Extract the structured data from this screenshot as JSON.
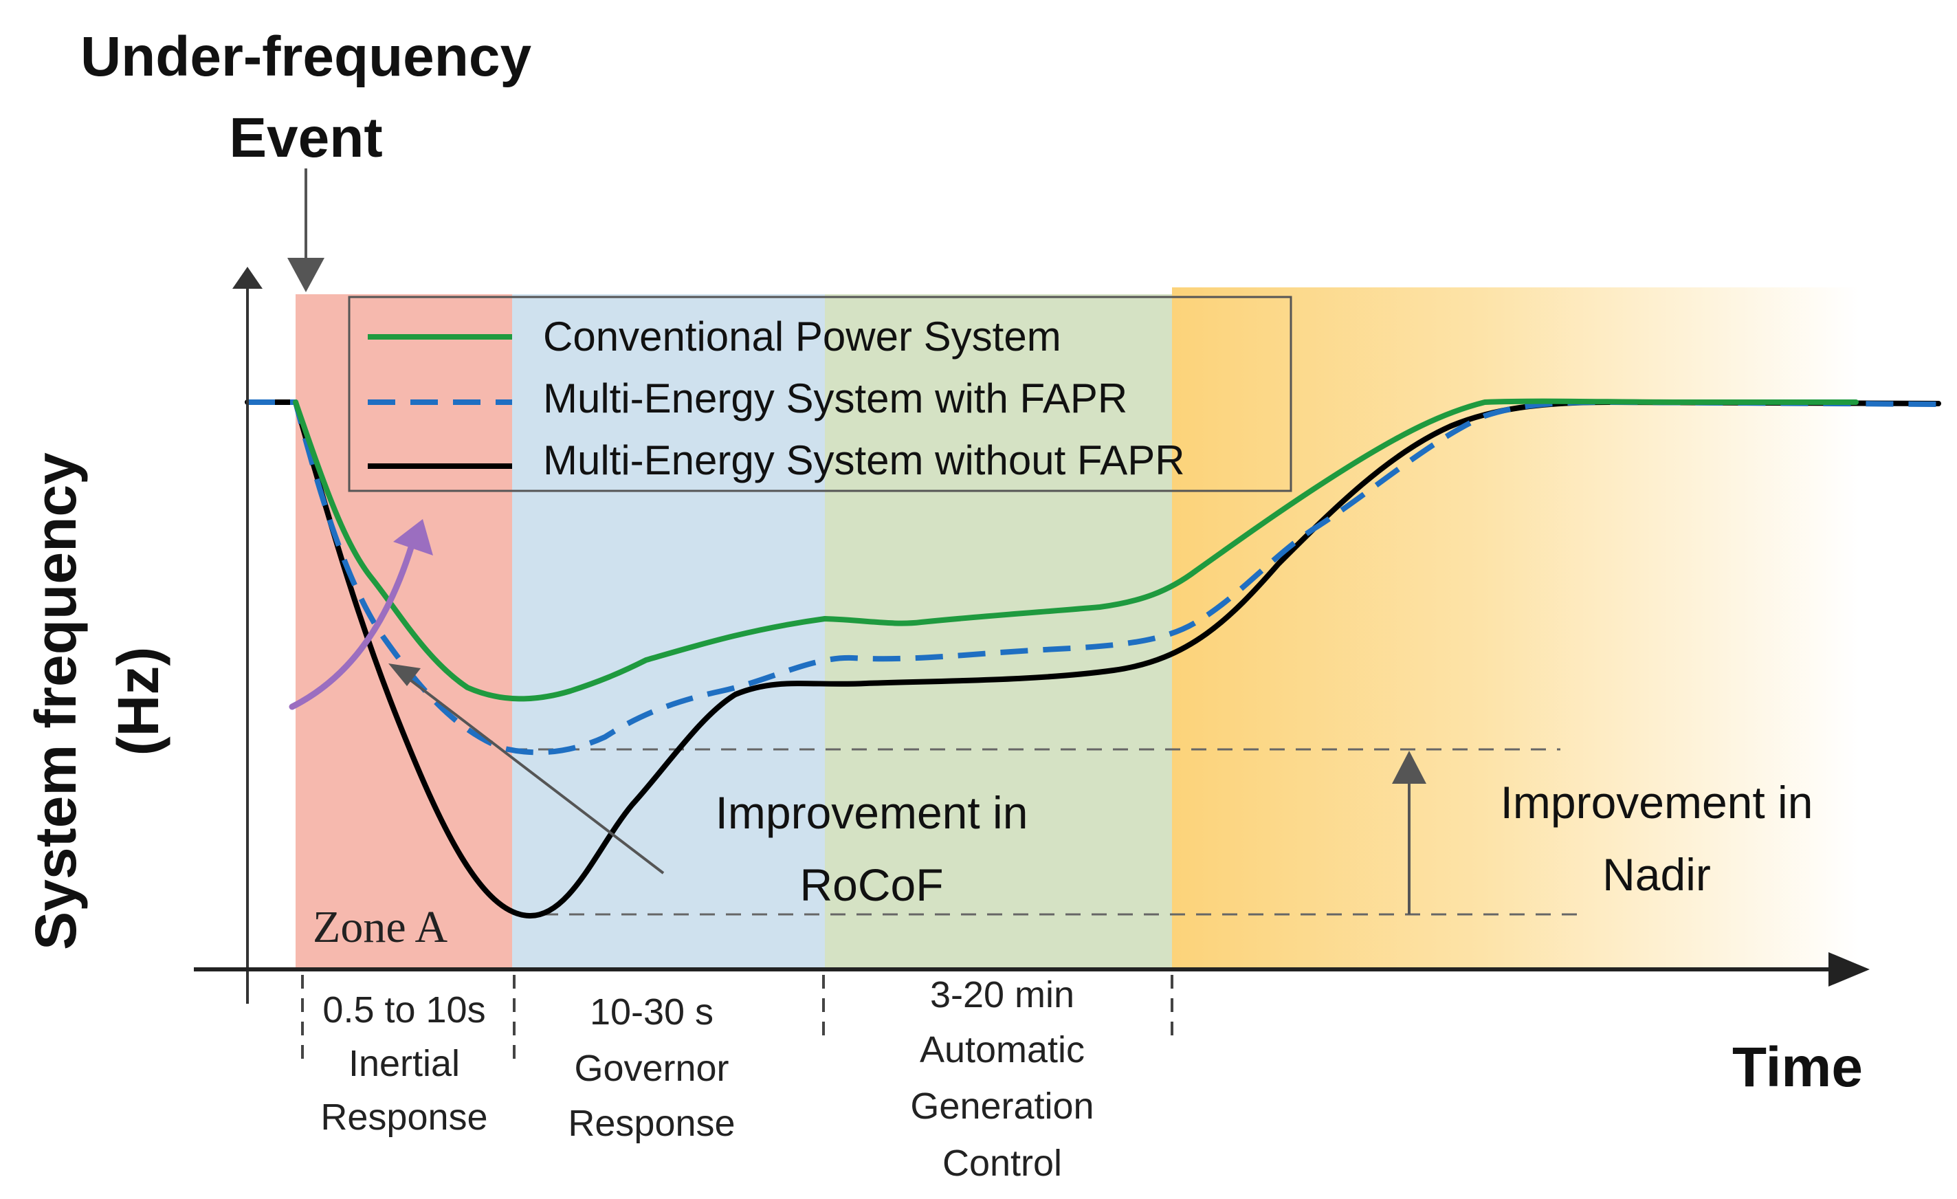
{
  "event": {
    "line1": "Under-frequency",
    "line2": "Event"
  },
  "y_axis": {
    "line1": "System frequency",
    "line2": "(Hz)"
  },
  "x_axis": {
    "label": "Time"
  },
  "legend": {
    "items": [
      {
        "label": "Conventional Power System",
        "color": "#1f9a3f",
        "style": "solid"
      },
      {
        "label": "Multi-Energy System with FAPR",
        "color": "#1f6fc2",
        "style": "dashed"
      },
      {
        "label": "Multi-Energy System without FAPR",
        "color": "#000000",
        "style": "solid"
      }
    ]
  },
  "zones": [
    {
      "lines": [
        "0.5 to 10s",
        "Inertial",
        "Response"
      ],
      "color": "#f6b9ae"
    },
    {
      "lines": [
        "10-30 s",
        "Governor",
        "Response"
      ],
      "color": "#cfe1ee"
    },
    {
      "lines": [
        "3-20 min",
        "Automatic",
        "Generation",
        "Control"
      ],
      "color": "#d5e2c4"
    },
    {
      "lines": [],
      "color": "#fcd37a"
    }
  ],
  "annotations": {
    "zone_a": "Zone A",
    "rocof_line1": "Improvement in",
    "rocof_line2": "RoCoF",
    "nadir_line1": "Improvement in",
    "nadir_line2": "Nadir"
  },
  "colors": {
    "green": "#1f9a3f",
    "blue": "#1f6fc2",
    "black": "#000000",
    "purple": "#9b6ec0",
    "gray": "#555555"
  }
}
